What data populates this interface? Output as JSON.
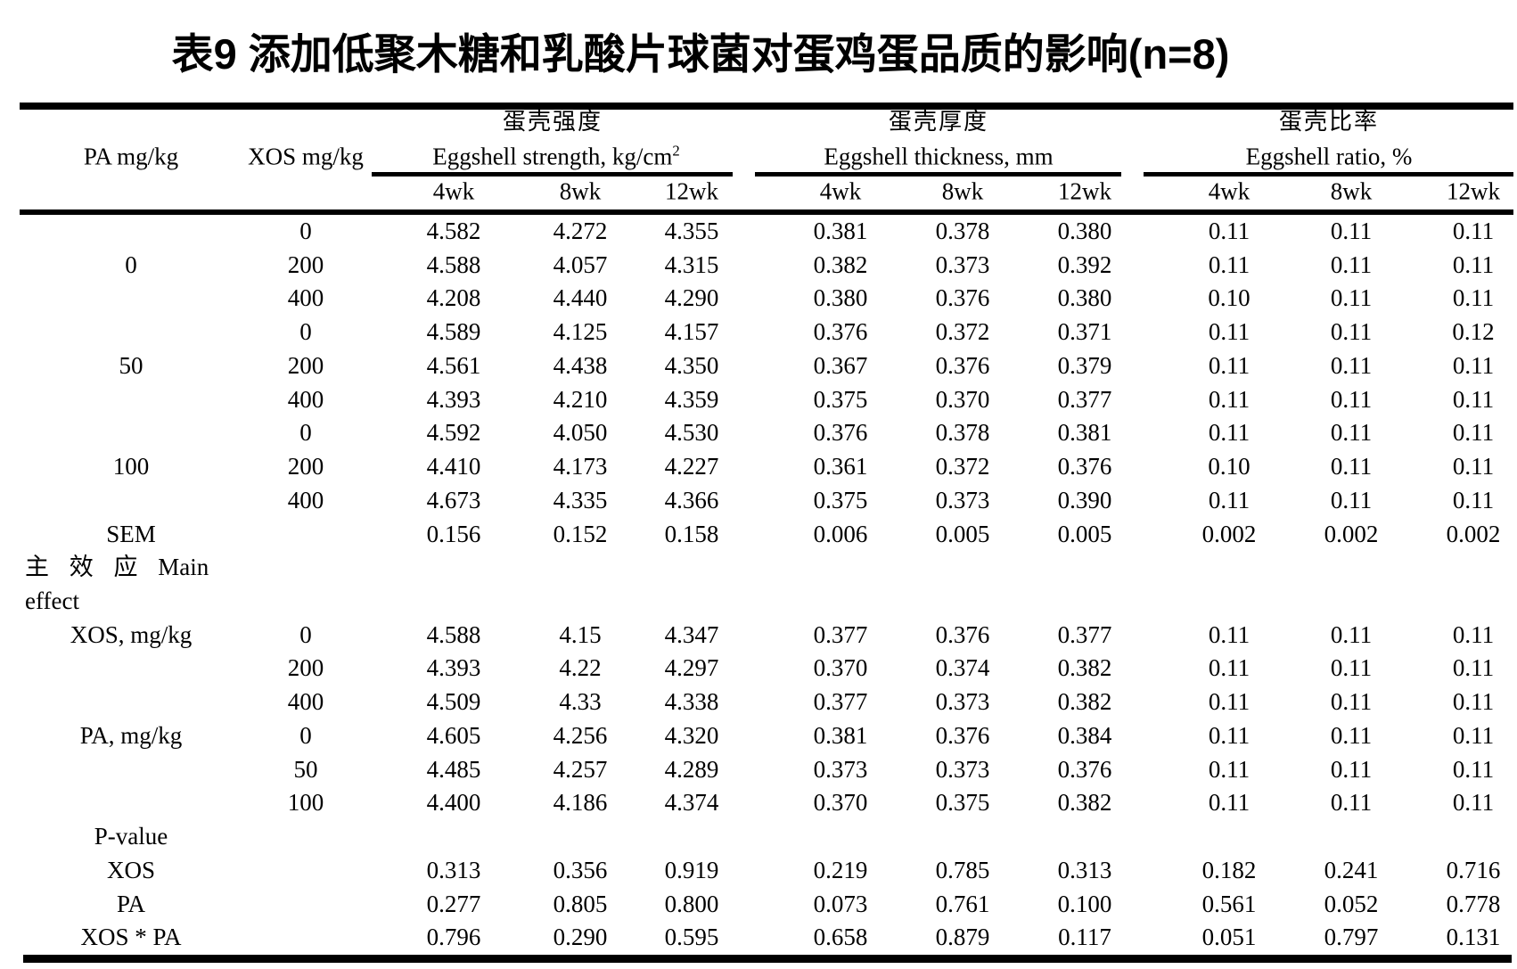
{
  "title": "表9 添加低聚木糖和乳酸片球菌对蛋鸡蛋品质的影响(n=8)",
  "header": {
    "col1": "PA mg/kg",
    "col2": "XOS mg/kg",
    "groups": [
      {
        "zh": "蛋壳强度",
        "en": "Eggshell strength, kg/cm",
        "sup": "2",
        "weeks": [
          "4wk",
          "8wk",
          "12wk"
        ]
      },
      {
        "zh": "蛋壳厚度",
        "en": "Eggshell thickness, mm",
        "sup": "",
        "weeks": [
          "4wk",
          "8wk",
          "12wk"
        ]
      },
      {
        "zh": "蛋壳比率",
        "en": "Eggshell ratio, %",
        "sup": "",
        "weeks": [
          "4wk",
          "8wk",
          "12wk"
        ]
      }
    ]
  },
  "rows": [
    {
      "type": "data",
      "pa": "",
      "xos": "0",
      "values": [
        "4.582",
        "4.272",
        "4.355",
        "0.381",
        "0.378",
        "0.380",
        "0.11",
        "0.11",
        "0.11"
      ]
    },
    {
      "type": "data",
      "pa": "0",
      "xos": "200",
      "values": [
        "4.588",
        "4.057",
        "4.315",
        "0.382",
        "0.373",
        "0.392",
        "0.11",
        "0.11",
        "0.11"
      ]
    },
    {
      "type": "data",
      "pa": "",
      "xos": "400",
      "values": [
        "4.208",
        "4.440",
        "4.290",
        "0.380",
        "0.376",
        "0.380",
        "0.10",
        "0.11",
        "0.11"
      ]
    },
    {
      "type": "data",
      "pa": "",
      "xos": "0",
      "values": [
        "4.589",
        "4.125",
        "4.157",
        "0.376",
        "0.372",
        "0.371",
        "0.11",
        "0.11",
        "0.12"
      ]
    },
    {
      "type": "data",
      "pa": "50",
      "xos": "200",
      "values": [
        "4.561",
        "4.438",
        "4.350",
        "0.367",
        "0.376",
        "0.379",
        "0.11",
        "0.11",
        "0.11"
      ]
    },
    {
      "type": "data",
      "pa": "",
      "xos": "400",
      "values": [
        "4.393",
        "4.210",
        "4.359",
        "0.375",
        "0.370",
        "0.377",
        "0.11",
        "0.11",
        "0.11"
      ]
    },
    {
      "type": "data",
      "pa": "",
      "xos": "0",
      "values": [
        "4.592",
        "4.050",
        "4.530",
        "0.376",
        "0.378",
        "0.381",
        "0.11",
        "0.11",
        "0.11"
      ]
    },
    {
      "type": "data",
      "pa": "100",
      "xos": "200",
      "values": [
        "4.410",
        "4.173",
        "4.227",
        "0.361",
        "0.372",
        "0.376",
        "0.10",
        "0.11",
        "0.11"
      ]
    },
    {
      "type": "data",
      "pa": "",
      "xos": "400",
      "values": [
        "4.673",
        "4.335",
        "4.366",
        "0.375",
        "0.373",
        "0.390",
        "0.11",
        "0.11",
        "0.11"
      ]
    },
    {
      "type": "data",
      "pa": "SEM",
      "xos": "",
      "values": [
        "0.156",
        "0.152",
        "0.158",
        "0.006",
        "0.005",
        "0.005",
        "0.002",
        "0.002",
        "0.002"
      ]
    },
    {
      "type": "note",
      "lines": [
        "主 效 应 Main",
        "effect"
      ]
    },
    {
      "type": "data",
      "pa": "XOS, mg/kg",
      "xos": "0",
      "values": [
        "4.588",
        "4.15",
        "4.347",
        "0.377",
        "0.376",
        "0.377",
        "0.11",
        "0.11",
        "0.11"
      ]
    },
    {
      "type": "data",
      "pa": "",
      "xos": "200",
      "values": [
        "4.393",
        "4.22",
        "4.297",
        "0.370",
        "0.374",
        "0.382",
        "0.11",
        "0.11",
        "0.11"
      ]
    },
    {
      "type": "data",
      "pa": "",
      "xos": "400",
      "values": [
        "4.509",
        "4.33",
        "4.338",
        "0.377",
        "0.373",
        "0.382",
        "0.11",
        "0.11",
        "0.11"
      ]
    },
    {
      "type": "data",
      "pa": "PA, mg/kg",
      "xos": "0",
      "values": [
        "4.605",
        "4.256",
        "4.320",
        "0.381",
        "0.376",
        "0.384",
        "0.11",
        "0.11",
        "0.11"
      ]
    },
    {
      "type": "data",
      "pa": "",
      "xos": "50",
      "values": [
        "4.485",
        "4.257",
        "4.289",
        "0.373",
        "0.373",
        "0.376",
        "0.11",
        "0.11",
        "0.11"
      ]
    },
    {
      "type": "data",
      "pa": "",
      "xos": "100",
      "values": [
        "4.400",
        "4.186",
        "4.374",
        "0.370",
        "0.375",
        "0.382",
        "0.11",
        "0.11",
        "0.11"
      ]
    },
    {
      "type": "data",
      "pa": "P-value",
      "xos": "",
      "values": [
        "",
        "",
        "",
        "",
        "",
        "",
        "",
        "",
        ""
      ]
    },
    {
      "type": "data",
      "pa": "XOS",
      "xos": "",
      "values": [
        "0.313",
        "0.356",
        "0.919",
        "0.219",
        "0.785",
        "0.313",
        "0.182",
        "0.241",
        "0.716"
      ]
    },
    {
      "type": "data",
      "pa": "PA",
      "xos": "",
      "values": [
        "0.277",
        "0.805",
        "0.800",
        "0.073",
        "0.761",
        "0.100",
        "0.561",
        "0.052",
        "0.778"
      ]
    },
    {
      "type": "data",
      "pa": "XOS * PA",
      "xos": "",
      "values": [
        "0.796",
        "0.290",
        "0.595",
        "0.658",
        "0.879",
        "0.117",
        "0.051",
        "0.797",
        "0.131"
      ]
    }
  ]
}
